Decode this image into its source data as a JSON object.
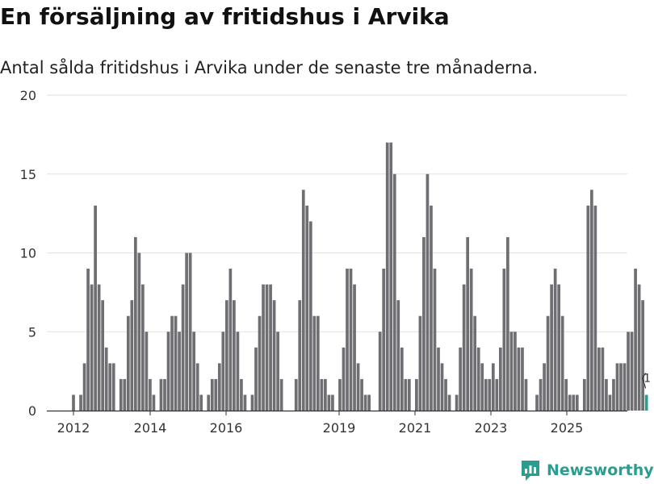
{
  "header": {
    "title": "En försäljning av fritidshus i Arvika",
    "subtitle": "Antal sålda fritidshus i Arvika under de senaste tre månaderna."
  },
  "brand": {
    "name": "Newsworthy",
    "color": "#2a9d8f"
  },
  "chart_data": {
    "type": "bar",
    "title": "En försäljning av fritidshus i Arvika",
    "subtitle": "Antal sålda fritidshus i Arvika under de senaste tre månaderna.",
    "ylim": [
      0,
      20
    ],
    "yticks": [
      0,
      5,
      10,
      15,
      20
    ],
    "ytick_labels": [
      "0",
      "5",
      "10",
      "15",
      "20"
    ],
    "xtick_labels": [
      "2012",
      "2014",
      "2016",
      "2019",
      "2021",
      "2023",
      "2025"
    ],
    "grid": true,
    "colors": {
      "bar": "#6e6e73",
      "highlight": "#2a9d8f"
    },
    "series": [
      {
        "values": [
          1,
          0,
          1,
          3,
          9,
          8,
          13,
          8,
          7,
          4,
          3,
          3,
          0,
          2,
          2,
          6,
          7,
          11,
          10,
          8,
          5,
          2,
          1,
          0,
          2,
          2,
          5,
          6,
          6,
          5,
          8,
          10,
          10,
          5,
          3,
          1,
          0,
          1,
          2,
          2,
          3,
          5,
          7,
          9,
          7,
          5,
          2,
          1,
          0,
          1,
          4,
          6,
          8,
          8,
          8,
          7,
          5,
          2,
          0,
          0,
          0,
          2,
          7,
          14,
          13,
          12,
          6,
          6,
          2,
          2,
          1,
          1,
          0,
          2,
          4,
          9,
          9,
          8,
          3,
          2,
          1,
          1,
          0,
          0,
          5,
          9,
          17,
          17,
          15,
          7,
          4,
          2,
          2,
          0,
          2,
          6,
          11,
          15,
          13,
          9,
          4,
          3,
          2,
          1,
          0,
          1,
          4,
          8,
          11,
          9,
          6,
          4,
          3,
          2,
          2,
          3,
          2,
          4,
          9,
          11,
          5,
          5,
          4,
          4,
          2,
          0,
          0,
          1,
          2,
          3,
          6,
          8,
          9,
          8,
          6,
          2,
          1,
          1,
          1,
          0,
          2,
          13,
          14,
          13,
          4,
          4,
          2,
          1,
          2,
          3,
          3,
          3,
          5,
          5,
          9,
          8,
          7,
          1
        ]
      }
    ],
    "annotations": [
      {
        "label": "1",
        "value": 1
      }
    ]
  }
}
